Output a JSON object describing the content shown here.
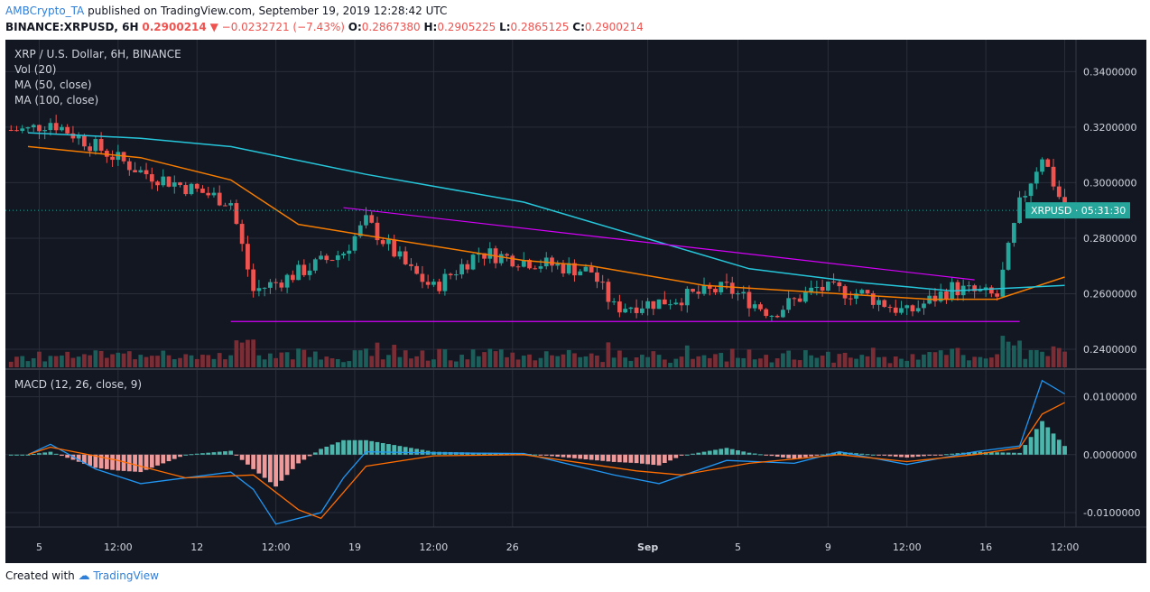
{
  "header": {
    "author": "AMBCrypto_TA",
    "published_text": "published on TradingView.com, September 19, 2019 12:28:42 UTC",
    "symbol": "BINANCE:XRPUSD, 6H",
    "last": "0.2900214",
    "change": "−0.0232721 (−7.43%)",
    "o_label": "O:",
    "o": "0.2867380",
    "h_label": "H:",
    "h": "0.2905225",
    "l_label": "L:",
    "l": "0.2865125",
    "c_label": "C:",
    "c": "0.2900214"
  },
  "legend": {
    "title": "XRP / U.S. Dollar, 6H, BINANCE",
    "vol": "Vol (20)",
    "ma50": "MA (50, close)",
    "ma100": "MA (100, close)",
    "macd": "MACD (12, 26, close, 9)"
  },
  "price_tag": "XRPUSD · 05:31:30",
  "footer": {
    "created": "Created with",
    "brand": "TradingView"
  },
  "colors": {
    "background": "#131722",
    "grid": "#2a2e39",
    "up": "#26a69a",
    "down": "#ef5350",
    "vol_up": "#1b5e5a",
    "vol_down": "#7b2d35",
    "ma50": "#f57c00",
    "ma100": "#26c6da",
    "trendline": "#d500f9",
    "macd": "#2196f3",
    "signal": "#ff6d00",
    "price_tag": "#26a69a"
  },
  "chart_data": [
    {
      "type": "candlestick",
      "title": "XRP / U.S. Dollar, 6H, BINANCE",
      "x_ticks": [
        "5",
        "12:00",
        "12",
        "12:00",
        "19",
        "12:00",
        "26",
        "Sep",
        "5",
        "9",
        "12:00",
        "16",
        "12:00"
      ],
      "y_ticks": [
        "0.3400000",
        "0.3200000",
        "0.3000000",
        "0.2800000",
        "0.2600000",
        "0.2400000"
      ],
      "ylim": [
        0.2335,
        0.3515
      ],
      "last_price": 0.2900214,
      "key_closes": [
        {
          "date": "Aug 4",
          "close": 0.319
        },
        {
          "date": "Aug 5",
          "close": 0.322
        },
        {
          "date": "Aug 9",
          "close": 0.304
        },
        {
          "date": "Aug 13",
          "close": 0.293
        },
        {
          "date": "Aug 14",
          "close": 0.261
        },
        {
          "date": "Aug 15",
          "close": 0.264
        },
        {
          "date": "Aug 18",
          "close": 0.275
        },
        {
          "date": "Aug 19",
          "close": 0.286
        },
        {
          "date": "Aug 21",
          "close": 0.268
        },
        {
          "date": "Aug 22",
          "close": 0.262
        },
        {
          "date": "Aug 24",
          "close": 0.275
        },
        {
          "date": "Aug 26",
          "close": 0.272
        },
        {
          "date": "Aug 29",
          "close": 0.268
        },
        {
          "date": "Aug 30",
          "close": 0.255
        },
        {
          "date": "Sep 1",
          "close": 0.257
        },
        {
          "date": "Sep 4",
          "close": 0.262
        },
        {
          "date": "Sep 6",
          "close": 0.253
        },
        {
          "date": "Sep 8",
          "close": 0.262
        },
        {
          "date": "Sep 10",
          "close": 0.26
        },
        {
          "date": "Sep 12",
          "close": 0.253
        },
        {
          "date": "Sep 14",
          "close": 0.262
        },
        {
          "date": "Sep 16",
          "close": 0.259
        },
        {
          "date": "Sep 17",
          "close": 0.292
        },
        {
          "date": "Sep 18",
          "close": 0.31
        },
        {
          "date": "Sep 19",
          "close": 0.29
        }
      ],
      "series": [
        {
          "name": "MA (50, close)",
          "points": [
            {
              "date": "Aug 4",
              "value": 0.313
            },
            {
              "date": "Aug 9",
              "value": 0.309
            },
            {
              "date": "Aug 13",
              "value": 0.301
            },
            {
              "date": "Aug 16",
              "value": 0.285
            },
            {
              "date": "Aug 19",
              "value": 0.281
            },
            {
              "date": "Aug 26",
              "value": 0.272
            },
            {
              "date": "Aug 29",
              "value": 0.27
            },
            {
              "date": "Sep 3",
              "value": 0.263
            },
            {
              "date": "Sep 9",
              "value": 0.26
            },
            {
              "date": "Sep 13",
              "value": 0.258
            },
            {
              "date": "Sep 16",
              "value": 0.258
            },
            {
              "date": "Sep 19",
              "value": 0.266
            }
          ]
        },
        {
          "name": "MA (100, close)",
          "points": [
            {
              "date": "Aug 4",
              "value": 0.318
            },
            {
              "date": "Aug 9",
              "value": 0.316
            },
            {
              "date": "Aug 13",
              "value": 0.313
            },
            {
              "date": "Aug 19",
              "value": 0.303
            },
            {
              "date": "Aug 26",
              "value": 0.293
            },
            {
              "date": "Aug 31",
              "value": 0.281
            },
            {
              "date": "Sep 5",
              "value": 0.269
            },
            {
              "date": "Sep 10",
              "value": 0.264
            },
            {
              "date": "Sep 14",
              "value": 0.261
            },
            {
              "date": "Sep 19",
              "value": 0.263
            }
          ]
        }
      ],
      "trendlines": [
        {
          "kind": "descending",
          "from": {
            "date": "Aug 18",
            "value": 0.291
          },
          "to": {
            "date": "Sep 15",
            "value": 0.265
          }
        },
        {
          "kind": "support",
          "from": {
            "date": "Aug 13",
            "value": 0.25
          },
          "to": {
            "date": "Sep 17",
            "value": 0.25
          }
        }
      ],
      "volume_note": "Vol (20) histogram at panel bottom, green = up bar, red = down bar; spike on Sep 17-18"
    },
    {
      "type": "line",
      "title": "MACD (12, 26, close, 9)",
      "y_ticks": [
        "0.0100000",
        "0.0000000",
        "-0.0100000"
      ],
      "ylim": [
        -0.0125,
        0.014
      ],
      "series": [
        {
          "name": "MACD",
          "points": [
            {
              "date": "Aug 4",
              "value": 0.0
            },
            {
              "date": "Aug 5",
              "value": 0.0018
            },
            {
              "date": "Aug 7",
              "value": -0.0025
            },
            {
              "date": "Aug 9",
              "value": -0.005
            },
            {
              "date": "Aug 13",
              "value": -0.003
            },
            {
              "date": "Aug 14",
              "value": -0.006
            },
            {
              "date": "Aug 15",
              "value": -0.012
            },
            {
              "date": "Aug 17",
              "value": -0.01
            },
            {
              "date": "Aug 18",
              "value": -0.004
            },
            {
              "date": "Aug 19",
              "value": 0.0005
            },
            {
              "date": "Aug 22",
              "value": 0.0003
            },
            {
              "date": "Aug 26",
              "value": 0.0002
            },
            {
              "date": "Aug 30",
              "value": -0.0035
            },
            {
              "date": "Sep 1",
              "value": -0.005
            },
            {
              "date": "Sep 4",
              "value": -0.001
            },
            {
              "date": "Sep 7",
              "value": -0.0015
            },
            {
              "date": "Sep 9",
              "value": 0.0005
            },
            {
              "date": "Sep 12",
              "value": -0.0017
            },
            {
              "date": "Sep 15",
              "value": 0.0005
            },
            {
              "date": "Sep 17",
              "value": 0.0015
            },
            {
              "date": "Sep 18",
              "value": 0.0128
            },
            {
              "date": "Sep 19",
              "value": 0.0105
            }
          ]
        },
        {
          "name": "Signal",
          "points": [
            {
              "date": "Aug 4",
              "value": 0.0
            },
            {
              "date": "Aug 5",
              "value": 0.0013
            },
            {
              "date": "Aug 8",
              "value": -0.001
            },
            {
              "date": "Aug 11",
              "value": -0.004
            },
            {
              "date": "Aug 14",
              "value": -0.0035
            },
            {
              "date": "Aug 16",
              "value": -0.0095
            },
            {
              "date": "Aug 17",
              "value": -0.011
            },
            {
              "date": "Aug 19",
              "value": -0.002
            },
            {
              "date": "Aug 22",
              "value": -0.0002
            },
            {
              "date": "Aug 26",
              "value": 0.0
            },
            {
              "date": "Aug 31",
              "value": -0.0028
            },
            {
              "date": "Sep 2",
              "value": -0.0035
            },
            {
              "date": "Sep 5",
              "value": -0.0015
            },
            {
              "date": "Sep 9",
              "value": 0.0
            },
            {
              "date": "Sep 12",
              "value": -0.0012
            },
            {
              "date": "Sep 15",
              "value": 0.0
            },
            {
              "date": "Sep 17",
              "value": 0.0012
            },
            {
              "date": "Sep 18",
              "value": 0.007
            },
            {
              "date": "Sep 19",
              "value": 0.009
            }
          ]
        }
      ]
    }
  ]
}
